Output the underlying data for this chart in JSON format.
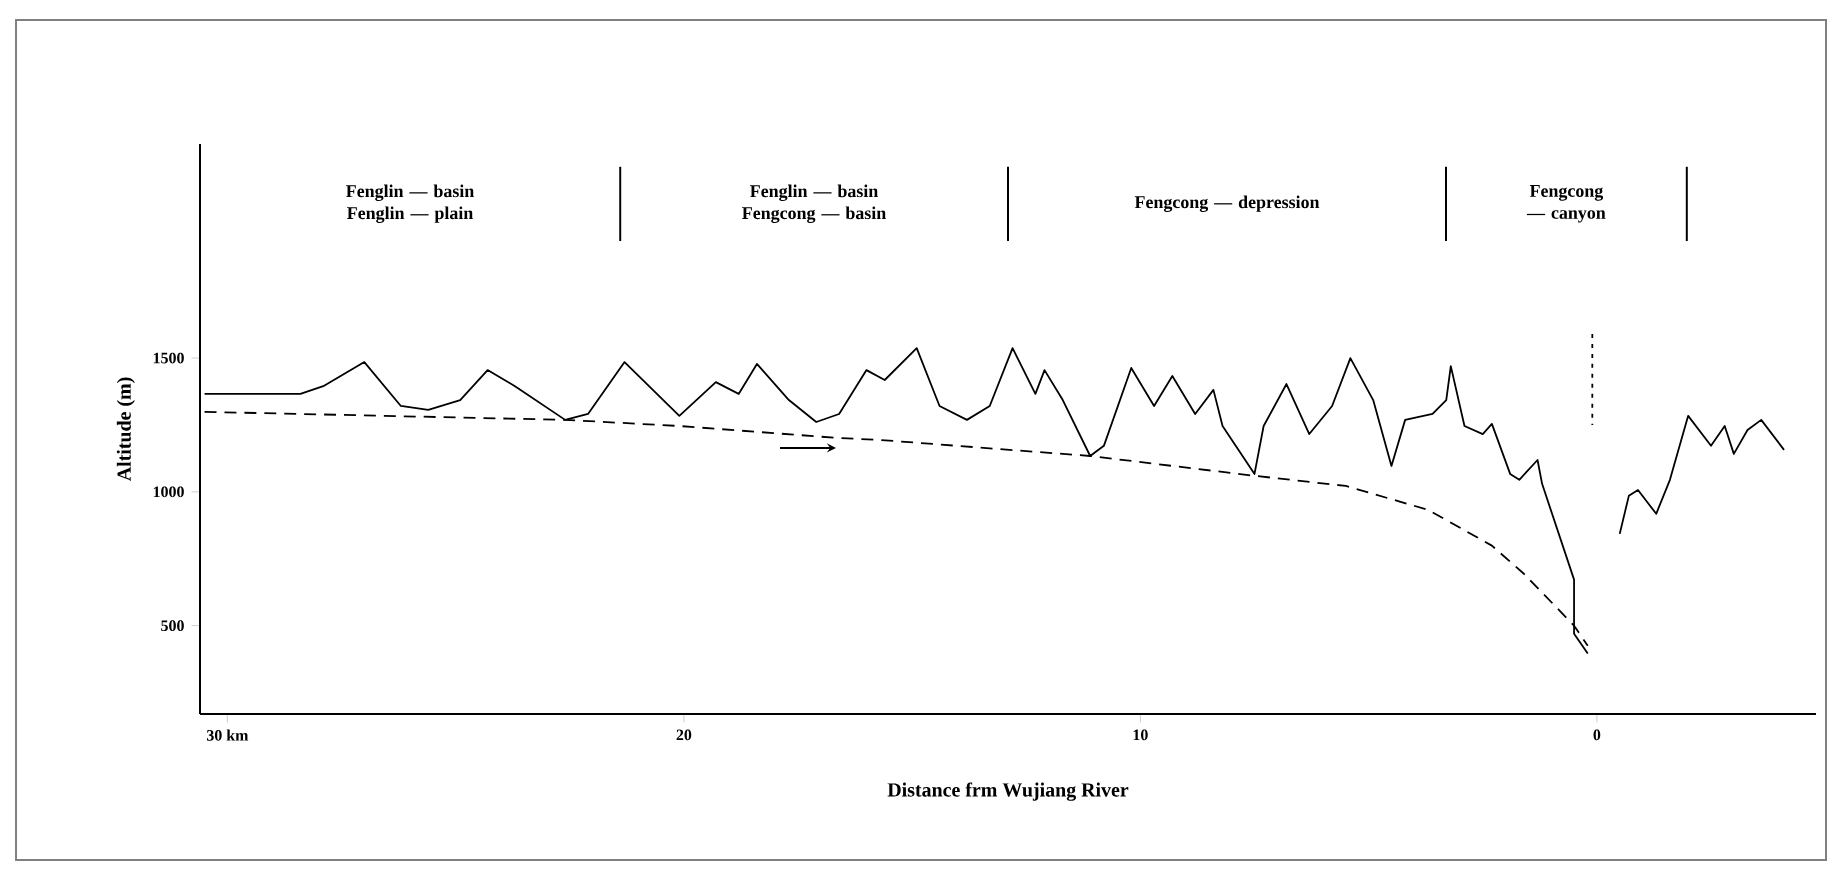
{
  "chart_data": {
    "type": "line",
    "xlabel": "Distance frm Wujiang River",
    "ylabel": "Altitude (m)",
    "xlim": [
      30.6,
      -4.8
    ],
    "ylim": [
      170,
      2300
    ],
    "xticks": [
      {
        "value": 30,
        "label": "30 km"
      },
      20,
      10,
      0
    ],
    "yticks": [
      500,
      1000,
      1500
    ],
    "series": [
      {
        "color": "#000000",
        "line_style": "solid",
        "x": [
          30.5,
          28.4,
          27.9,
          27.0,
          26.2,
          25.6,
          24.9,
          24.3,
          23.7,
          22.6,
          22.1,
          21.3,
          20.1,
          19.3,
          18.8,
          18.4,
          17.7,
          17.1,
          16.6,
          16.0,
          15.6,
          14.9,
          14.4,
          13.8,
          13.3,
          12.8,
          12.3,
          12.1,
          11.7,
          11.1,
          10.8,
          10.2,
          9.7,
          9.3,
          8.8,
          8.4,
          8.2,
          7.5,
          7.3,
          6.8,
          6.3,
          5.8,
          5.4,
          4.9,
          4.5,
          4.2,
          3.6,
          3.3,
          3.2,
          2.9,
          2.5,
          2.3,
          1.9,
          1.7,
          1.3,
          1.2,
          0.5,
          0.5,
          0.2,
          0.0,
          -0.5,
          -0.7,
          -0.9,
          -1.3,
          -1.6,
          -2.0,
          -2.5,
          -2.8,
          -3.0,
          -3.3,
          -3.6,
          -4.1
        ],
        "values": [
          1366,
          1366,
          1395,
          1485,
          1321,
          1306,
          1343,
          1455,
          1395,
          1269,
          1291,
          1485,
          1284,
          1410,
          1366,
          1478,
          1343,
          1261,
          1291,
          1455,
          1418,
          1537,
          1321,
          1269,
          1321,
          1537,
          1366,
          1455,
          1343,
          1134,
          1172,
          1463,
          1321,
          1433,
          1291,
          1381,
          1246,
          1067,
          1246,
          1403,
          1216,
          1321,
          1500,
          1343,
          1097,
          1269,
          1291,
          1343,
          1470,
          1246,
          1216,
          1254,
          1067,
          1045,
          1119,
          1030,
          672,
          470,
          396,
          null,
          843,
          985,
          1007,
          918,
          1045,
          1284,
          1172,
          1246,
          1142,
          1231,
          1269,
          1157
        ]
      },
      {
        "color": "#000000",
        "line_style": "dashed",
        "x": [
          30.5,
          22.6,
          20.1,
          16.6,
          15.7,
          11.1,
          7.5,
          5.5,
          3.7,
          2.3,
          1.6,
          0.5,
          0.2
        ],
        "values": [
          1299,
          1269,
          1246,
          1201,
          1194,
          1134,
          1060,
          1022,
          933,
          799,
          694,
          500,
          425
        ]
      },
      {
        "color": "#000000",
        "line_style": "dotted",
        "x": [
          0.1,
          0.1
        ],
        "values": [
          1590,
          1250
        ]
      }
    ],
    "annotations": [
      "Fenglin — basin Fenglin — plain",
      "Fenglin — basin Fengcong — basin",
      "Fengcong — depression",
      "Fengcong — canyon"
    ]
  }
}
